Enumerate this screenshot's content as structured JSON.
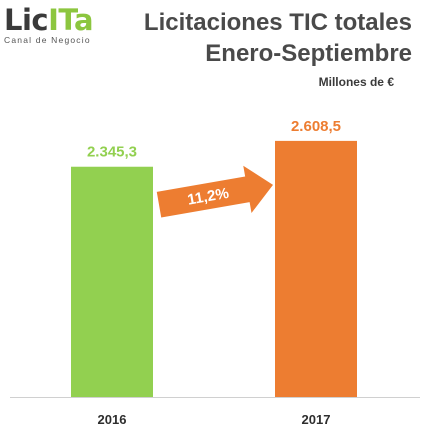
{
  "logo": {
    "prefix": "Lic",
    "accent": "ITa",
    "tagline": "Canal de Negocio"
  },
  "colors": {
    "green": "#92d050",
    "orange": "#ed7d31",
    "text_dark": "#4a4a4a"
  },
  "chart_data": {
    "type": "bar",
    "title_line1": "Licitaciones TIC totales",
    "title_line2": "Enero-Septiembre",
    "unit": "Millones de €",
    "categories": [
      "2016",
      "2017"
    ],
    "values": [
      2345.3,
      2608.5
    ],
    "value_labels": [
      "2.345,3",
      "2.608,5"
    ],
    "bar_colors": [
      "#92d050",
      "#ed7d31"
    ],
    "annotation": {
      "text": "11,2%",
      "from": "2016",
      "to": "2017",
      "shape": "arrow"
    },
    "ylim": [
      0,
      2750
    ],
    "grid": false,
    "legend": "none"
  }
}
